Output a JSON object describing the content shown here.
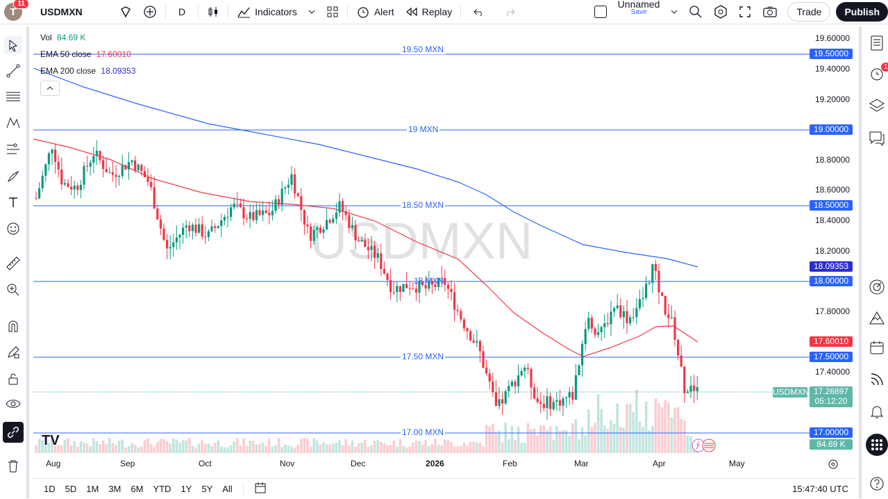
{
  "topbar": {
    "avatar_letter": "T",
    "notifications": "11",
    "symbol": "USDMXN",
    "interval": "D",
    "indicators": "Indicators",
    "alert": "Alert",
    "replay": "Replay",
    "layout_name": "Unnamed",
    "layout_save": "Save",
    "trade": "Trade",
    "publish": "Publish"
  },
  "legend": {
    "vol_label": "Vol",
    "vol_value": "84.69 K",
    "ema50_label": "EMA 50 close",
    "ema50_value": "17.60010",
    "ema200_label": "EMA 200 close",
    "ema200_value": "18.09353"
  },
  "watermark": "USDMXN",
  "price_ticks": [
    "19.60000",
    "19.40000",
    "19.20000",
    "18.80000",
    "18.60000",
    "18.40000",
    "18.20000",
    "17.80000",
    "17.40000"
  ],
  "horizontal_lines": [
    {
      "label": "19.50 MXN",
      "price": "19.50000"
    },
    {
      "label": "19 MXN",
      "price": "19.00000"
    },
    {
      "label": "18.50 MXN",
      "price": "18.50000"
    },
    {
      "label": "18 MXN",
      "price": "18.00000"
    },
    {
      "label": "17.50 MXN",
      "price": "17.50000"
    },
    {
      "label": "17.00 MXN",
      "price": "17.00000"
    }
  ],
  "price_tags": {
    "ema200": "18.09353",
    "ema50": "17.60010",
    "current_symbol": "USDMXN",
    "current_price": "17.26897",
    "countdown": "05:12:20",
    "volume": "84.69 K"
  },
  "time_ticks": [
    "Aug",
    "Sep",
    "Oct",
    "Nov",
    "Dec",
    "2026",
    "Feb",
    "Mar",
    "Apr",
    "May"
  ],
  "bottombar": {
    "ranges": [
      "1D",
      "5D",
      "1M",
      "3M",
      "6M",
      "YTD",
      "1Y",
      "5Y",
      "All"
    ],
    "clock": "15:47:40 UTC"
  },
  "right_panel": {
    "alerts_badge": "1"
  },
  "colors": {
    "up": "#089981",
    "down": "#f23645",
    "hline": "#2962ff",
    "ema50": "#f23645",
    "ema200": "#2962ff",
    "tagblue": "#2962ff",
    "tagnavy": "#2a2ecd",
    "taggreen": "#5eb8a8"
  }
}
